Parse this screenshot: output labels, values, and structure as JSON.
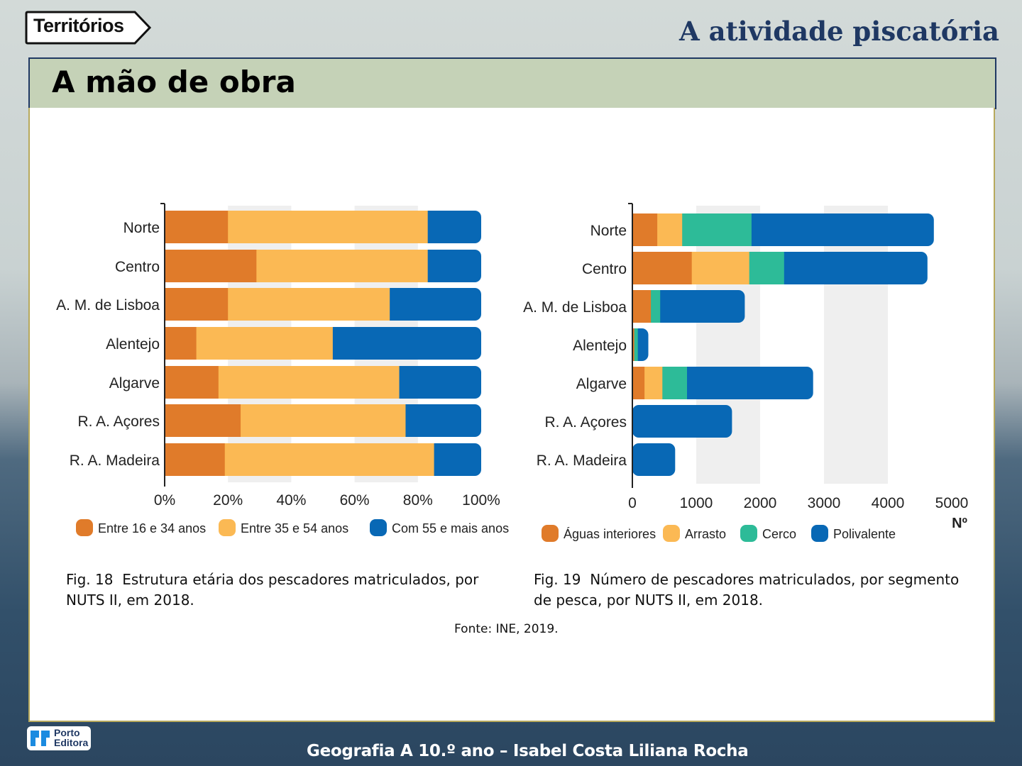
{
  "header": {
    "logo_text": "Territórios",
    "section_title": "A atividade piscatória",
    "slide_title": "A mão de obra"
  },
  "colors": {
    "orange": "#e07b2a",
    "yellow": "#fbb954",
    "green": "#2dbb98",
    "blue": "#0868b5",
    "title_band": "#c5d2b7",
    "navy": "#1f3863"
  },
  "chart_data": [
    {
      "type": "bar",
      "orientation": "horizontal",
      "stacked": true,
      "categories": [
        "Norte",
        "Centro",
        "A. M. de Lisboa",
        "Alentejo",
        "Algarve",
        "R. A. Açores",
        "R. A. Madeira"
      ],
      "series": [
        {
          "name": "Entre 16 e 34 anos",
          "color": "#e07b2a",
          "values": [
            20,
            29,
            20,
            10,
            17,
            24,
            19
          ]
        },
        {
          "name": "Entre  35 e 54 anos",
          "color": "#fbb954",
          "values": [
            63,
            54,
            51,
            43,
            57,
            52,
            66
          ]
        },
        {
          "name": "Com 55 e mais anos",
          "color": "#0868b5",
          "values": [
            17,
            17,
            29,
            47,
            26,
            24,
            15
          ]
        }
      ],
      "xlim": [
        0,
        100
      ],
      "xticks": [
        "0%",
        "20%",
        "40%",
        "60%",
        "80%",
        "100%"
      ],
      "grid": "alternating vertical bands",
      "legend": "bottom",
      "caption_label": "Fig. 18",
      "caption": "Estrutura etária dos pescadores matriculados, por NUTS II, em 2018."
    },
    {
      "type": "bar",
      "orientation": "horizontal",
      "stacked": true,
      "categories": [
        "Norte",
        "Centro",
        "A. M. de Lisboa",
        "Alentejo",
        "Algarve",
        "R. A. Açores",
        "R. A. Madeira"
      ],
      "series": [
        {
          "name": "Águas interiores",
          "color": "#e07b2a",
          "values": [
            390,
            930,
            290,
            30,
            190,
            0,
            0
          ]
        },
        {
          "name": "Arrasto",
          "color": "#fbb954",
          "values": [
            390,
            900,
            0,
            0,
            280,
            0,
            0
          ]
        },
        {
          "name": "Cerco",
          "color": "#2dbb98",
          "values": [
            1080,
            540,
            140,
            50,
            380,
            0,
            0
          ]
        },
        {
          "name": "Polivalente",
          "color": "#0868b5",
          "values": [
            2860,
            2250,
            1330,
            170,
            1980,
            1560,
            670
          ]
        }
      ],
      "xlim": [
        0,
        5000
      ],
      "xticks": [
        "0",
        "1000",
        "2000",
        "3000",
        "4000",
        "5000"
      ],
      "xlabel": "Nº",
      "grid": "alternating vertical bands",
      "legend": "bottom",
      "caption_label": "Fig. 19",
      "caption": "Número de pescadores matriculados, por segmento de pesca, por NUTS II, em 2018."
    }
  ],
  "source": "Fonte: INE, 2019.",
  "footer": {
    "publisher": "Porto Editora",
    "publisher_line1": "Porto",
    "publisher_line2": "Editora",
    "credits": "Geografia A 10.º ano – Isabel Costa  Liliana Rocha"
  }
}
